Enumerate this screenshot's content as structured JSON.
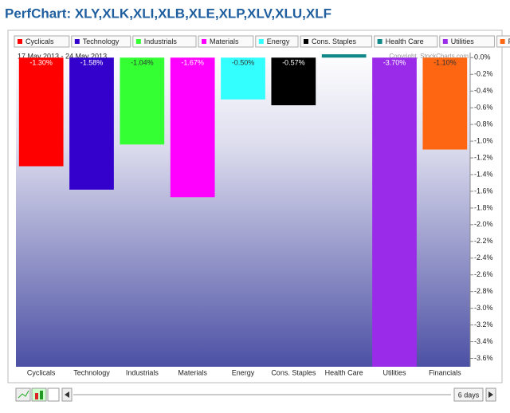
{
  "chart_data": {
    "type": "bar",
    "title": "PerfChart: XLY,XLK,XLI,XLB,XLE,XLP,XLV,XLU,XLF",
    "subtitle": "17 May 2013 - 24 May 2013",
    "annotation": "Copyright, StockCharts.com",
    "categories": [
      "Cyclicals",
      "Technology",
      "Industrials",
      "Materials",
      "Energy",
      "Cons. Staples",
      "Health Care",
      "Utilities",
      "Financials"
    ],
    "values": [
      -1.3,
      -1.58,
      -1.04,
      -1.67,
      -0.5,
      -0.57,
      0.04,
      -3.7,
      -1.1
    ],
    "value_labels": [
      "-1.30%",
      "-1.58%",
      "-1.04%",
      "-1.67%",
      "-0.50%",
      "-0.57%",
      null,
      "-3.70%",
      "-1.10%"
    ],
    "colors": [
      "#ff0000",
      "#3300cc",
      "#33ff33",
      "#ff00ff",
      "#33ffff",
      "#000000",
      "#118888",
      "#9a2be8",
      "#ff6611"
    ],
    "ylim": [
      -3.7,
      0.06
    ],
    "yticks": [
      {
        "value": 0,
        "label": "0.0%"
      },
      {
        "value": -0.2,
        "label": "-0.2%"
      },
      {
        "value": -0.4,
        "label": "-0.4%"
      },
      {
        "value": -0.6,
        "label": "-0.6%"
      },
      {
        "value": -0.8,
        "label": "-0.8%"
      },
      {
        "value": -1.0,
        "label": "-1.0%"
      },
      {
        "value": -1.2,
        "label": "-1.2%"
      },
      {
        "value": -1.4,
        "label": "-1.4%"
      },
      {
        "value": -1.6,
        "label": "-1.6%"
      },
      {
        "value": -1.8,
        "label": "-1.8%"
      },
      {
        "value": -2.0,
        "label": "-2.0%"
      },
      {
        "value": -2.2,
        "label": "-2.2%"
      },
      {
        "value": -2.4,
        "label": "-2.4%"
      },
      {
        "value": -2.6,
        "label": "-2.6%"
      },
      {
        "value": -2.8,
        "label": "-2.8%"
      },
      {
        "value": -3.0,
        "label": "-3.0%"
      },
      {
        "value": -3.2,
        "label": "-3.2%"
      },
      {
        "value": -3.4,
        "label": "-3.4%"
      },
      {
        "value": -3.6,
        "label": "-3.6%"
      }
    ]
  },
  "controls": {
    "period": "6 days"
  }
}
